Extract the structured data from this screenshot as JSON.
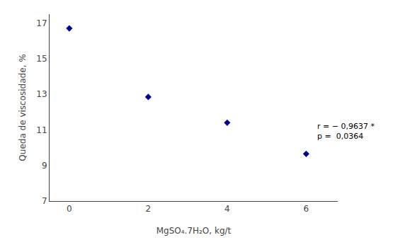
{
  "chart_data": {
    "type": "scatter",
    "x": [
      0,
      2,
      4,
      6
    ],
    "y": [
      16.7,
      12.85,
      11.4,
      9.65
    ],
    "color": "#00008B",
    "marker": "diamond",
    "xlabel": "MgSO₄.7H₂O, kg/t",
    "ylabel": "Queda de viscosidade, %",
    "xlim": [
      -0.5,
      6.8
    ],
    "ylim": [
      7,
      17.5
    ],
    "xticks": [
      0,
      2,
      4,
      6
    ],
    "yticks": [
      7,
      9,
      11,
      13,
      15,
      17
    ],
    "grid": false,
    "annotations": [
      {
        "text": "r = − 0,9637 *\np =  0,0364",
        "x": 6.25,
        "y": 10.9
      }
    ]
  }
}
